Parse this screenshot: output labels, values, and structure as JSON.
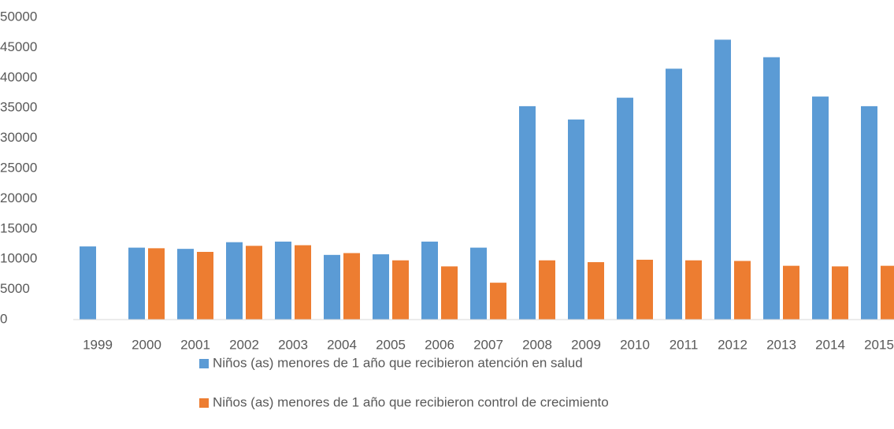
{
  "chart_data": {
    "type": "bar",
    "categories": [
      "1999",
      "2000",
      "2001",
      "2002",
      "2003",
      "2004",
      "2005",
      "2006",
      "2007",
      "2008",
      "2009",
      "2010",
      "2011",
      "2012",
      "2013",
      "2014",
      "2015"
    ],
    "series": [
      {
        "name": "Niños (as) menores de 1 año que recibieron atención en salud",
        "color": "#5b9bd5",
        "values": [
          12100,
          11900,
          11700,
          12800,
          12900,
          10700,
          10800,
          12900,
          11900,
          35300,
          33100,
          36700,
          41500,
          46300,
          43400,
          36900,
          35300
        ]
      },
      {
        "name": "Niños (as) menores de 1 año que recibieron control de crecimiento",
        "color": "#ed7d31",
        "values": [
          null,
          11800,
          11200,
          12200,
          12300,
          11000,
          9800,
          8800,
          6100,
          9800,
          9500,
          9900,
          9800,
          9700,
          8900,
          8800,
          8900
        ]
      }
    ],
    "ylim": [
      0,
      50000
    ],
    "yticks": [
      0,
      5000,
      10000,
      15000,
      20000,
      25000,
      30000,
      35000,
      40000,
      45000,
      50000
    ],
    "grid": false,
    "legend": "bottom"
  }
}
